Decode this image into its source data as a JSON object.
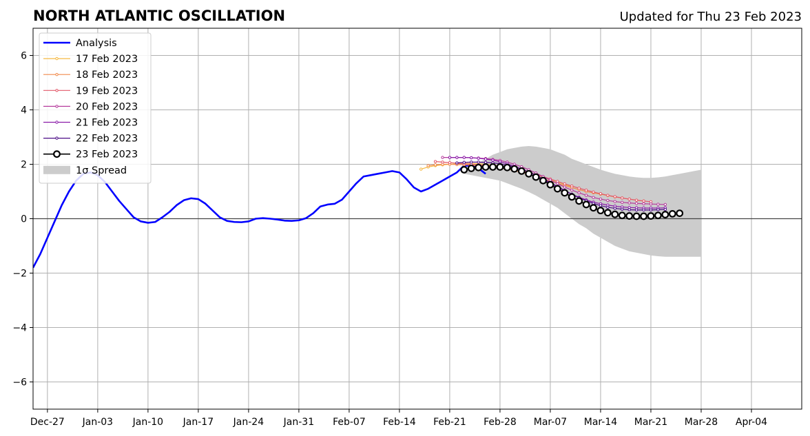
{
  "chart_data": {
    "type": "line",
    "title": "NORTH ATLANTIC OSCILLATION",
    "subtitle": "Updated for Thu 23 Feb 2023",
    "xlabel": "",
    "ylabel": "",
    "x_start_date": "2022-12-25",
    "x_end_date": "2023-04-11",
    "ylim": [
      -7,
      7
    ],
    "yticks": [
      -6,
      -4,
      -2,
      0,
      2,
      4,
      6
    ],
    "ytick_labels": [
      "−6",
      "−4",
      "−2",
      "0",
      "2",
      "4",
      "6"
    ],
    "xticks": [
      {
        "date": "2022-12-27",
        "label": "Dec-27"
      },
      {
        "date": "2023-01-03",
        "label": "Jan-03"
      },
      {
        "date": "2023-01-10",
        "label": "Jan-10"
      },
      {
        "date": "2023-01-17",
        "label": "Jan-17"
      },
      {
        "date": "2023-01-24",
        "label": "Jan-24"
      },
      {
        "date": "2023-01-31",
        "label": "Jan-31"
      },
      {
        "date": "2023-02-07",
        "label": "Feb-07"
      },
      {
        "date": "2023-02-14",
        "label": "Feb-14"
      },
      {
        "date": "2023-02-21",
        "label": "Feb-21"
      },
      {
        "date": "2023-02-28",
        "label": "Feb-28"
      },
      {
        "date": "2023-03-07",
        "label": "Mar-07"
      },
      {
        "date": "2023-03-14",
        "label": "Mar-14"
      },
      {
        "date": "2023-03-21",
        "label": "Mar-21"
      },
      {
        "date": "2023-03-28",
        "label": "Mar-28"
      },
      {
        "date": "2023-04-04",
        "label": "Apr-04"
      }
    ],
    "grid": true,
    "legend_position": "top-left",
    "colors": {
      "analysis": "#0000ff",
      "spread": "#cccccc",
      "zero_line": "#444444",
      "grid": "#b0b0b0"
    },
    "analysis": {
      "name": "Analysis",
      "start_date": "2022-12-25",
      "values": [
        -1.8,
        -1.3,
        -0.7,
        -0.1,
        0.5,
        1.0,
        1.4,
        1.65,
        1.7,
        1.6,
        1.35,
        1.0,
        0.65,
        0.35,
        0.05,
        -0.1,
        -0.15,
        -0.12,
        0.05,
        0.25,
        0.5,
        0.68,
        0.75,
        0.72,
        0.55,
        0.3,
        0.05,
        -0.08,
        -0.12,
        -0.13,
        -0.1,
        0.0,
        0.02,
        0.0,
        -0.03,
        -0.07,
        -0.08,
        -0.06,
        0.02,
        0.2,
        0.45,
        0.52,
        0.55,
        0.7,
        1.0,
        1.3,
        1.55,
        1.6,
        1.65,
        1.7,
        1.75,
        1.7,
        1.45,
        1.15,
        1.0,
        1.1,
        1.25,
        1.4,
        1.55,
        1.7,
        1.95,
        1.95,
        1.85,
        1.65
      ]
    },
    "spread": {
      "name": "1σ Spread",
      "start_date": "2023-02-23",
      "upper": [
        1.8,
        1.9,
        2.05,
        2.2,
        2.35,
        2.45,
        2.55,
        2.6,
        2.65,
        2.67,
        2.65,
        2.6,
        2.55,
        2.45,
        2.35,
        2.2,
        2.1,
        2.0,
        1.9,
        1.8,
        1.72,
        1.65,
        1.6,
        1.55,
        1.52,
        1.5,
        1.5,
        1.52,
        1.55,
        1.6,
        1.65,
        1.7,
        1.75,
        1.8
      ],
      "lower": [
        1.65,
        1.6,
        1.55,
        1.5,
        1.45,
        1.4,
        1.3,
        1.2,
        1.1,
        0.98,
        0.85,
        0.7,
        0.55,
        0.4,
        0.2,
        0.0,
        -0.2,
        -0.35,
        -0.55,
        -0.7,
        -0.85,
        -1.0,
        -1.1,
        -1.2,
        -1.25,
        -1.3,
        -1.35,
        -1.38,
        -1.4,
        -1.4,
        -1.4,
        -1.4,
        -1.4,
        -1.4
      ]
    },
    "series": [
      {
        "name": "17 Feb 2023",
        "color": "#f5b942",
        "marker": "small",
        "start_date": "2023-02-17",
        "values": [
          1.82,
          1.9,
          1.95,
          1.98,
          2.0,
          2.02,
          2.03,
          2.03,
          2.02,
          2.0,
          1.97,
          1.93,
          1.88,
          1.83,
          1.77,
          1.7,
          1.62,
          1.53,
          1.44,
          1.35,
          1.26,
          1.17
        ]
      },
      {
        "name": "18 Feb 2023",
        "color": "#f08a4b",
        "marker": "small",
        "start_date": "2023-02-18",
        "values": [
          1.95,
          1.98,
          2.0,
          2.0,
          1.99,
          1.98,
          1.97,
          1.95,
          1.93,
          1.9,
          1.87,
          1.82,
          1.77,
          1.7,
          1.63,
          1.55,
          1.47,
          1.38,
          1.3,
          1.22,
          1.14,
          1.07,
          1.0,
          0.95,
          0.9,
          0.85,
          0.8,
          0.76,
          0.72,
          0.68,
          0.65
        ]
      },
      {
        "name": "19 Feb 2023",
        "color": "#e2596a",
        "marker": "small",
        "start_date": "2023-02-19",
        "values": [
          2.1,
          2.08,
          2.06,
          2.04,
          2.02,
          2.0,
          1.98,
          1.96,
          1.93,
          1.9,
          1.86,
          1.82,
          1.76,
          1.7,
          1.63,
          1.55,
          1.46,
          1.37,
          1.28,
          1.2,
          1.12,
          1.05,
          0.98,
          0.92,
          0.86,
          0.81,
          0.76,
          0.72,
          0.68,
          0.65,
          0.62
        ]
      },
      {
        "name": "20 Feb 2023",
        "color": "#b53a9c",
        "marker": "small",
        "start_date": "2023-02-20",
        "values": [
          2.25,
          2.25,
          2.25,
          2.25,
          2.24,
          2.23,
          2.21,
          2.18,
          2.14,
          2.08,
          2.0,
          1.91,
          1.8,
          1.68,
          1.55,
          1.42,
          1.29,
          1.16,
          1.05,
          0.95,
          0.86,
          0.78,
          0.72,
          0.67,
          0.63,
          0.6,
          0.58,
          0.56,
          0.55,
          0.54,
          0.53,
          0.52
        ]
      },
      {
        "name": "21 Feb 2023",
        "color": "#8a1aa8",
        "marker": "small",
        "start_date": "2023-02-21",
        "values": [
          2.25,
          2.25,
          2.25,
          2.24,
          2.22,
          2.19,
          2.15,
          2.09,
          2.02,
          1.93,
          1.83,
          1.71,
          1.58,
          1.44,
          1.3,
          1.16,
          1.02,
          0.9,
          0.79,
          0.69,
          0.61,
          0.55,
          0.5,
          0.46,
          0.43,
          0.41,
          0.4,
          0.39,
          0.39,
          0.39,
          0.4
        ]
      },
      {
        "name": "22 Feb 2023",
        "color": "#4b0a86",
        "marker": "small",
        "start_date": "2023-02-22",
        "values": [
          2.05,
          2.07,
          2.08,
          2.08,
          2.07,
          2.05,
          2.02,
          1.97,
          1.9,
          1.82,
          1.72,
          1.6,
          1.47,
          1.33,
          1.18,
          1.04,
          0.9,
          0.77,
          0.66,
          0.56,
          0.48,
          0.42,
          0.38,
          0.35,
          0.33,
          0.32,
          0.32,
          0.32,
          0.33,
          0.34
        ]
      },
      {
        "name": "23 Feb 2023",
        "color": "#000000",
        "marker": "large",
        "start_date": "2023-02-23",
        "values": [
          1.8,
          1.85,
          1.88,
          1.9,
          1.9,
          1.9,
          1.88,
          1.83,
          1.75,
          1.65,
          1.53,
          1.4,
          1.25,
          1.1,
          0.95,
          0.8,
          0.65,
          0.52,
          0.4,
          0.3,
          0.22,
          0.16,
          0.12,
          0.1,
          0.09,
          0.09,
          0.1,
          0.12,
          0.15,
          0.18,
          0.2
        ]
      }
    ],
    "legend": [
      {
        "label": "Analysis",
        "kind": "analysis"
      },
      {
        "label": "17 Feb 2023",
        "kind": "series",
        "index": 0
      },
      {
        "label": "18 Feb 2023",
        "kind": "series",
        "index": 1
      },
      {
        "label": "19 Feb 2023",
        "kind": "series",
        "index": 2
      },
      {
        "label": "20 Feb 2023",
        "kind": "series",
        "index": 3
      },
      {
        "label": "21 Feb 2023",
        "kind": "series",
        "index": 4
      },
      {
        "label": "22 Feb 2023",
        "kind": "series",
        "index": 5
      },
      {
        "label": "23 Feb 2023",
        "kind": "series",
        "index": 6
      },
      {
        "label": "1σ Spread",
        "kind": "spread"
      }
    ]
  }
}
